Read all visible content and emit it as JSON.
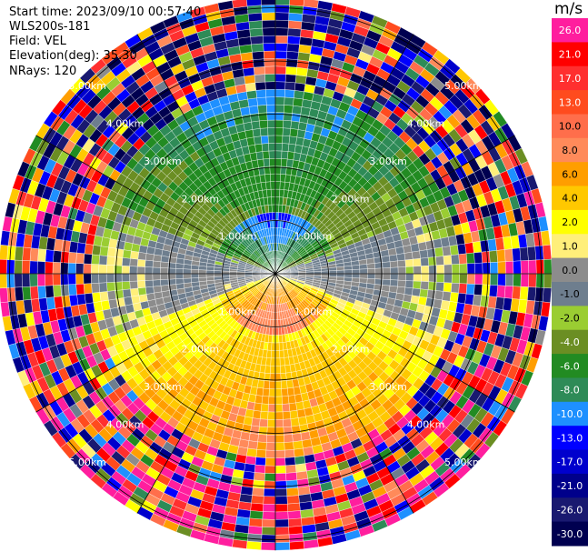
{
  "meta": {
    "start_time": "Start time: 2023/09/10 00:57:40",
    "instrument": "WLS200s-181",
    "field": "Field: VEL",
    "elevation": "Elevation(deg): 35.30",
    "nrays": "NRays: 120"
  },
  "chart_data": {
    "type": "ppi-radial-velocity",
    "field": "VEL",
    "units": "m/s",
    "nrays": 120,
    "elevation_deg": 35.3,
    "range_rings_km": [
      1,
      2,
      3,
      4,
      5
    ],
    "ring_labels": [
      "1.00km",
      "2.00km",
      "3.00km",
      "4.00km",
      "5.00km"
    ],
    "spoke_azimuths_deg": [
      0,
      30,
      60,
      90,
      120,
      150,
      180,
      210,
      240,
      270,
      300,
      330
    ],
    "max_range_km": 5.2,
    "colorbar": {
      "ticks": [
        "26.0",
        "21.0",
        "17.0",
        "13.0",
        "10.0",
        "8.0",
        "6.0",
        "4.0",
        "2.0",
        "1.0",
        "0.0",
        "-1.0",
        "-2.0",
        "-4.0",
        "-6.0",
        "-8.0",
        "-10.0",
        "-13.0",
        "-17.0",
        "-21.0",
        "-26.0",
        "-30.0"
      ],
      "colors": [
        "#ff1e9e",
        "#ff0000",
        "#ff2f2f",
        "#ff4b1e",
        "#ff6e4b",
        "#ff8a5a",
        "#ff9e00",
        "#ffc800",
        "#ffff00",
        "#ffef7a",
        "#8c8c8c",
        "#6e7e8e",
        "#9acd32",
        "#6b8e23",
        "#228b22",
        "#2e8b57",
        "#1e90ff",
        "#0000ff",
        "#0000cd",
        "#00008b",
        "#191970",
        "#000050"
      ]
    },
    "velocity_pattern": {
      "north_near_range": "negative (-4 to -10 m/s, green/blue)",
      "south_near_range": "positive (4 to 10 m/s, orange/red)",
      "east_west": "near zero (grey)",
      "far_range": "noisy / unfolded"
    }
  }
}
